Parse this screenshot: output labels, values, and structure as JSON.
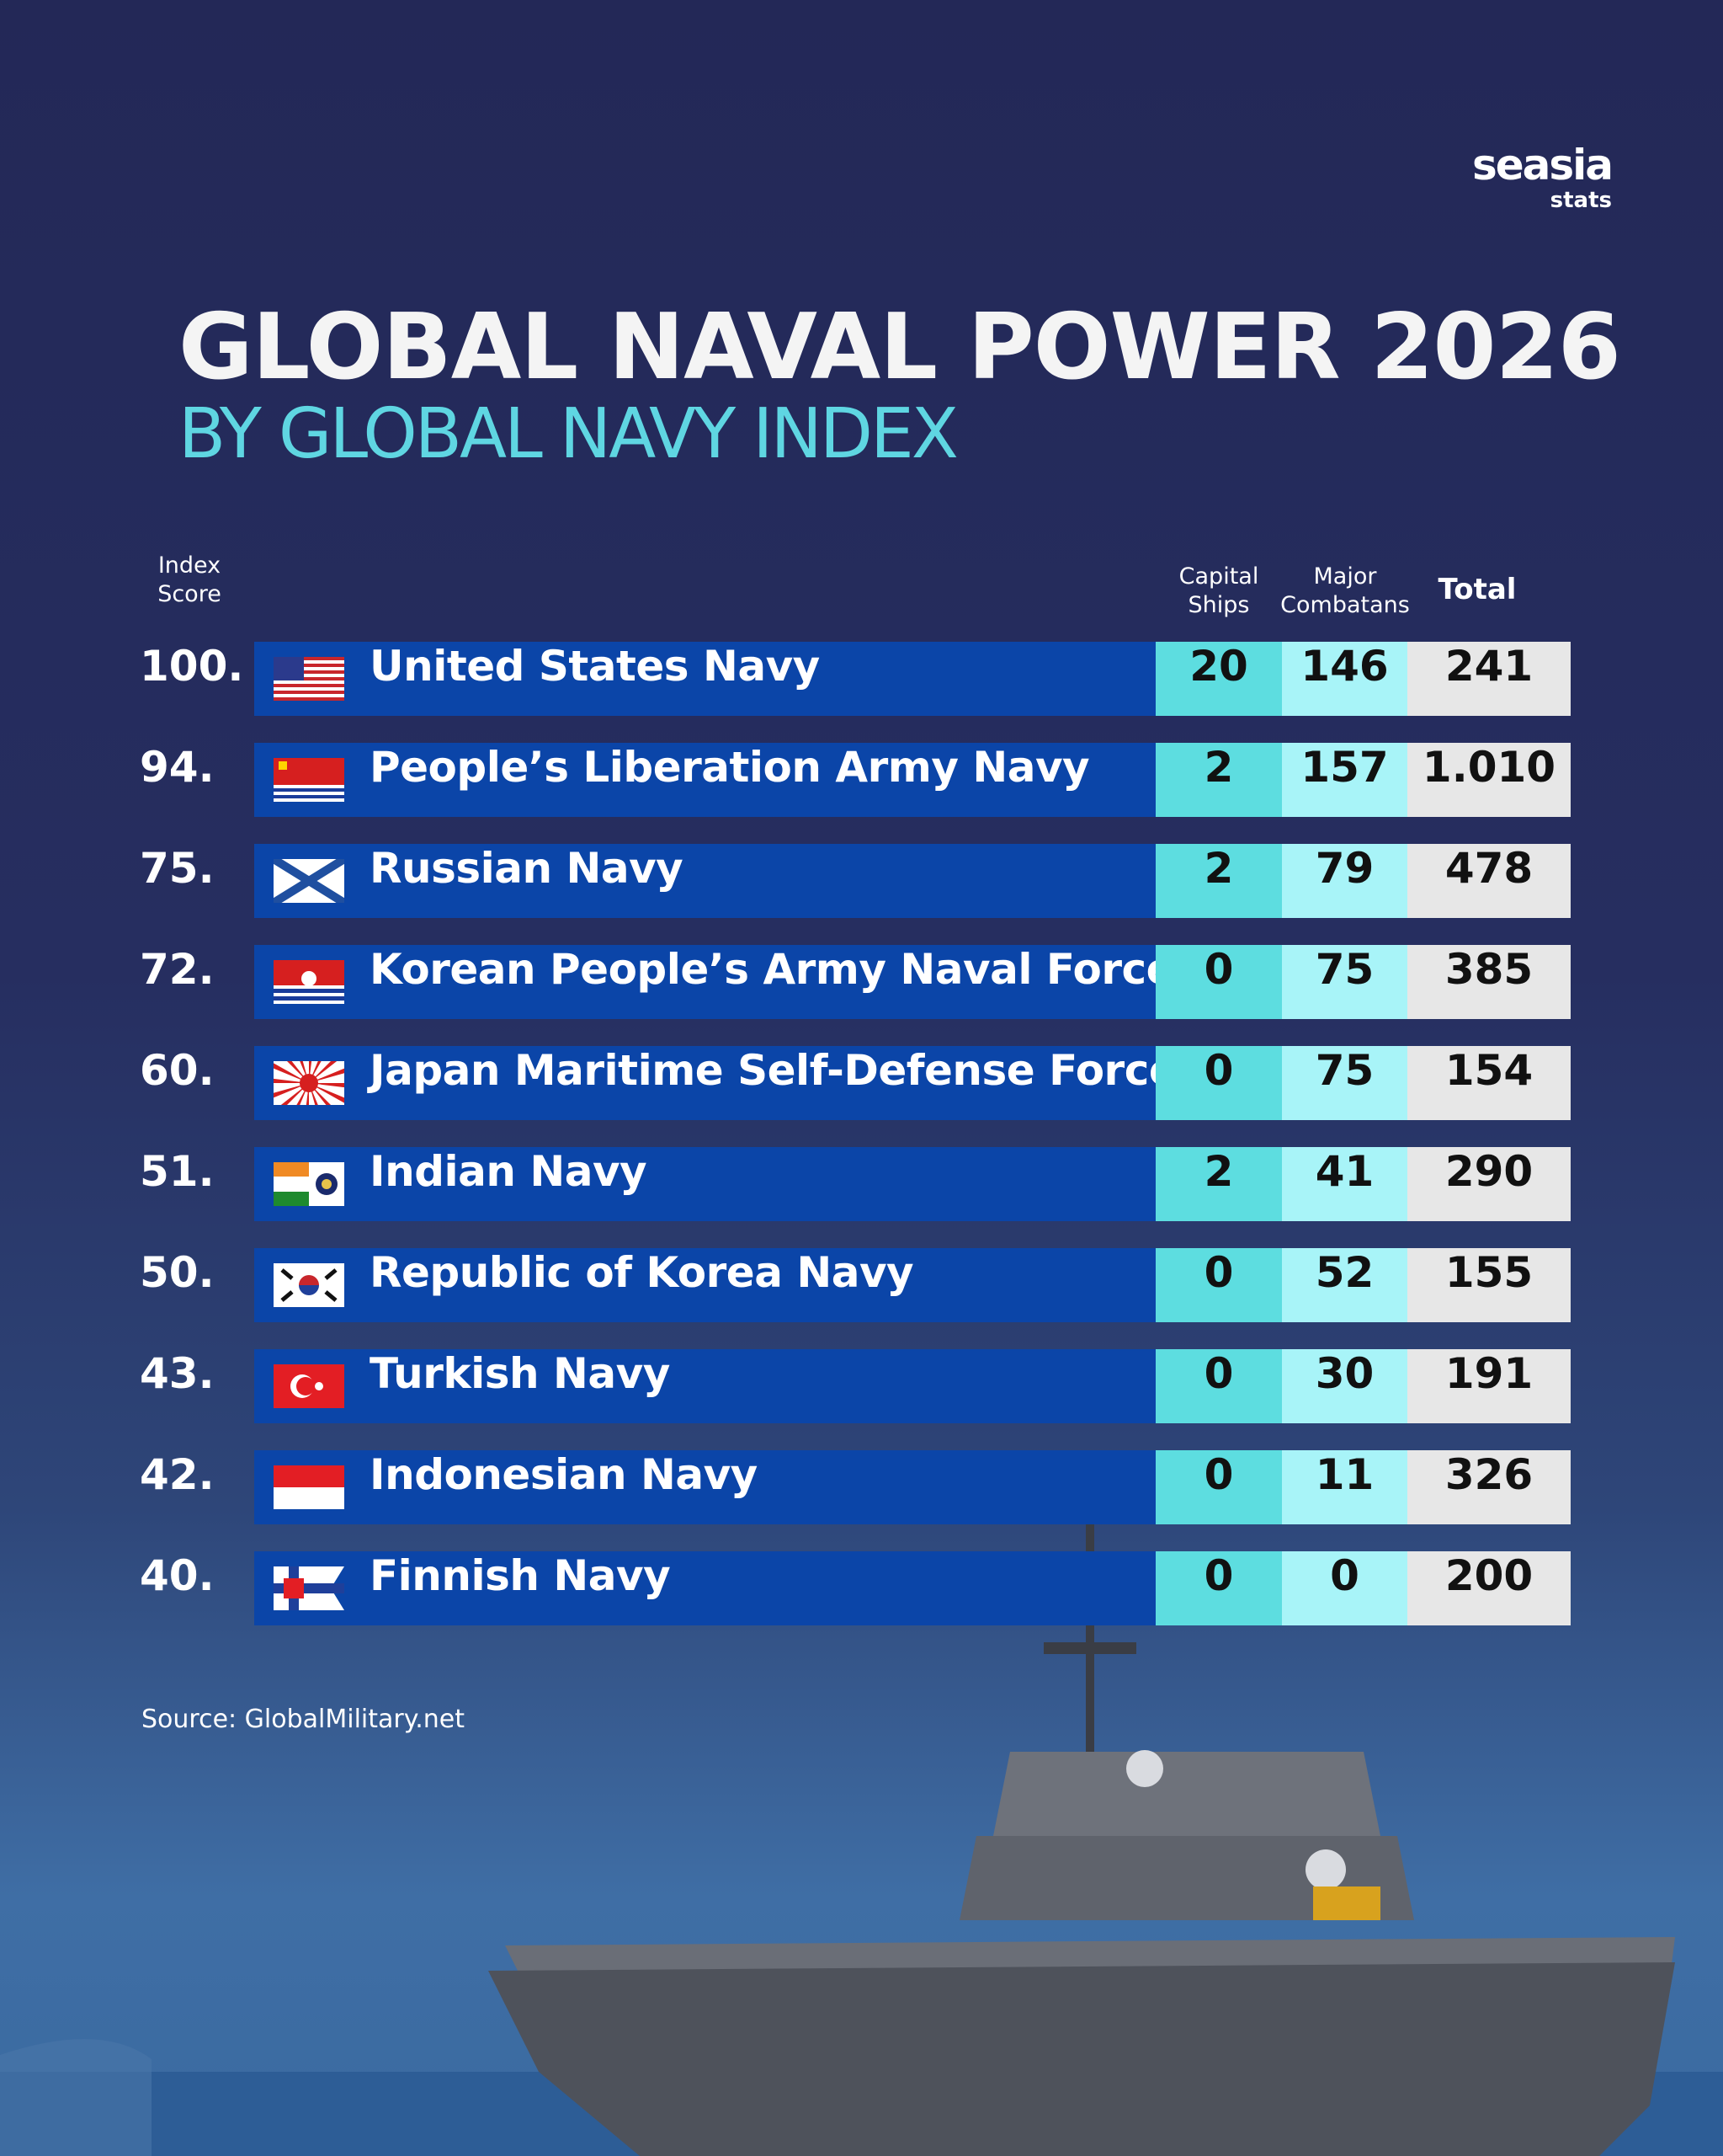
{
  "logo": {
    "name": "seasia",
    "sub": "stats"
  },
  "title": "GLOBAL NAVAL POWER 2026",
  "subtitle": "BY GLOBAL NAVY INDEX",
  "table": {
    "columns": [
      "Index Score",
      "Capital Ships",
      "Major Combatans",
      "Total"
    ],
    "rows": [
      [
        "100.",
        "United States Navy",
        "20",
        "146",
        "241"
      ],
      [
        "94.",
        "People’s Liberation Army Navy",
        "2",
        "157",
        "1.010"
      ],
      [
        "75.",
        "Russian Navy",
        "2",
        "79",
        "478"
      ],
      [
        "72.",
        "Korean People’s Army Naval Force",
        "0",
        "75",
        "385"
      ],
      [
        "60.",
        "Japan Maritime Self-Defense Force",
        "0",
        "75",
        "154"
      ],
      [
        "51.",
        "Indian Navy",
        "2",
        "41",
        "290"
      ],
      [
        "50.",
        "Republic of Korea Navy",
        "0",
        "52",
        "155"
      ],
      [
        "43.",
        "Turkish Navy",
        "0",
        "30",
        "191"
      ],
      [
        "42.",
        "Indonesian Navy",
        "0",
        "11",
        "326"
      ],
      [
        "40.",
        "Finnish Navy",
        "0",
        "0",
        "200"
      ]
    ]
  },
  "source": "Source: GlobalMilitary.net"
}
